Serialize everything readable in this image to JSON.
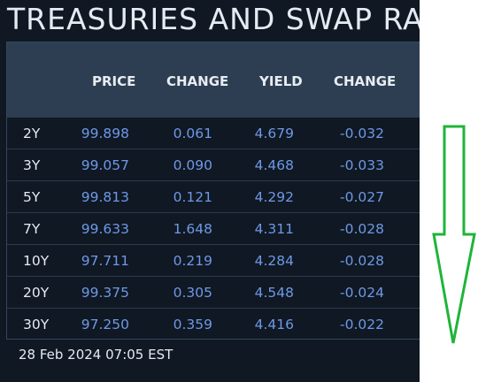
{
  "title": "TREASURIES AND SWAP RATES",
  "columns": [
    "PRICE",
    "CHANGE",
    "YIELD",
    "CHANGE"
  ],
  "rows": [
    {
      "tenor": "2Y",
      "price": "99.898",
      "change": "0.061",
      "yield": "4.679",
      "ychange": "-0.032"
    },
    {
      "tenor": "3Y",
      "price": "99.057",
      "change": "0.090",
      "yield": "4.468",
      "ychange": "-0.033"
    },
    {
      "tenor": "5Y",
      "price": "99.813",
      "change": "0.121",
      "yield": "4.292",
      "ychange": "-0.027"
    },
    {
      "tenor": "7Y",
      "price": "99.633",
      "change": "1.648",
      "yield": "4.311",
      "ychange": "-0.028"
    },
    {
      "tenor": "10Y",
      "price": "97.711",
      "change": "0.219",
      "yield": "4.284",
      "ychange": "-0.028"
    },
    {
      "tenor": "20Y",
      "price": "99.375",
      "change": "0.305",
      "yield": "4.548",
      "ychange": "-0.024"
    },
    {
      "tenor": "30Y",
      "price": "97.250",
      "change": "0.359",
      "yield": "4.416",
      "ychange": "-0.022"
    }
  ],
  "timestamp": "28 Feb 2024 07:05 EST",
  "colors": {
    "background": "#0f1823",
    "header": "#2d3e52",
    "value": "#6f98e6",
    "text": "#e6ebf2",
    "annotation": "#1fb43a"
  },
  "annotation": {
    "icon": "down-arrow-icon"
  }
}
